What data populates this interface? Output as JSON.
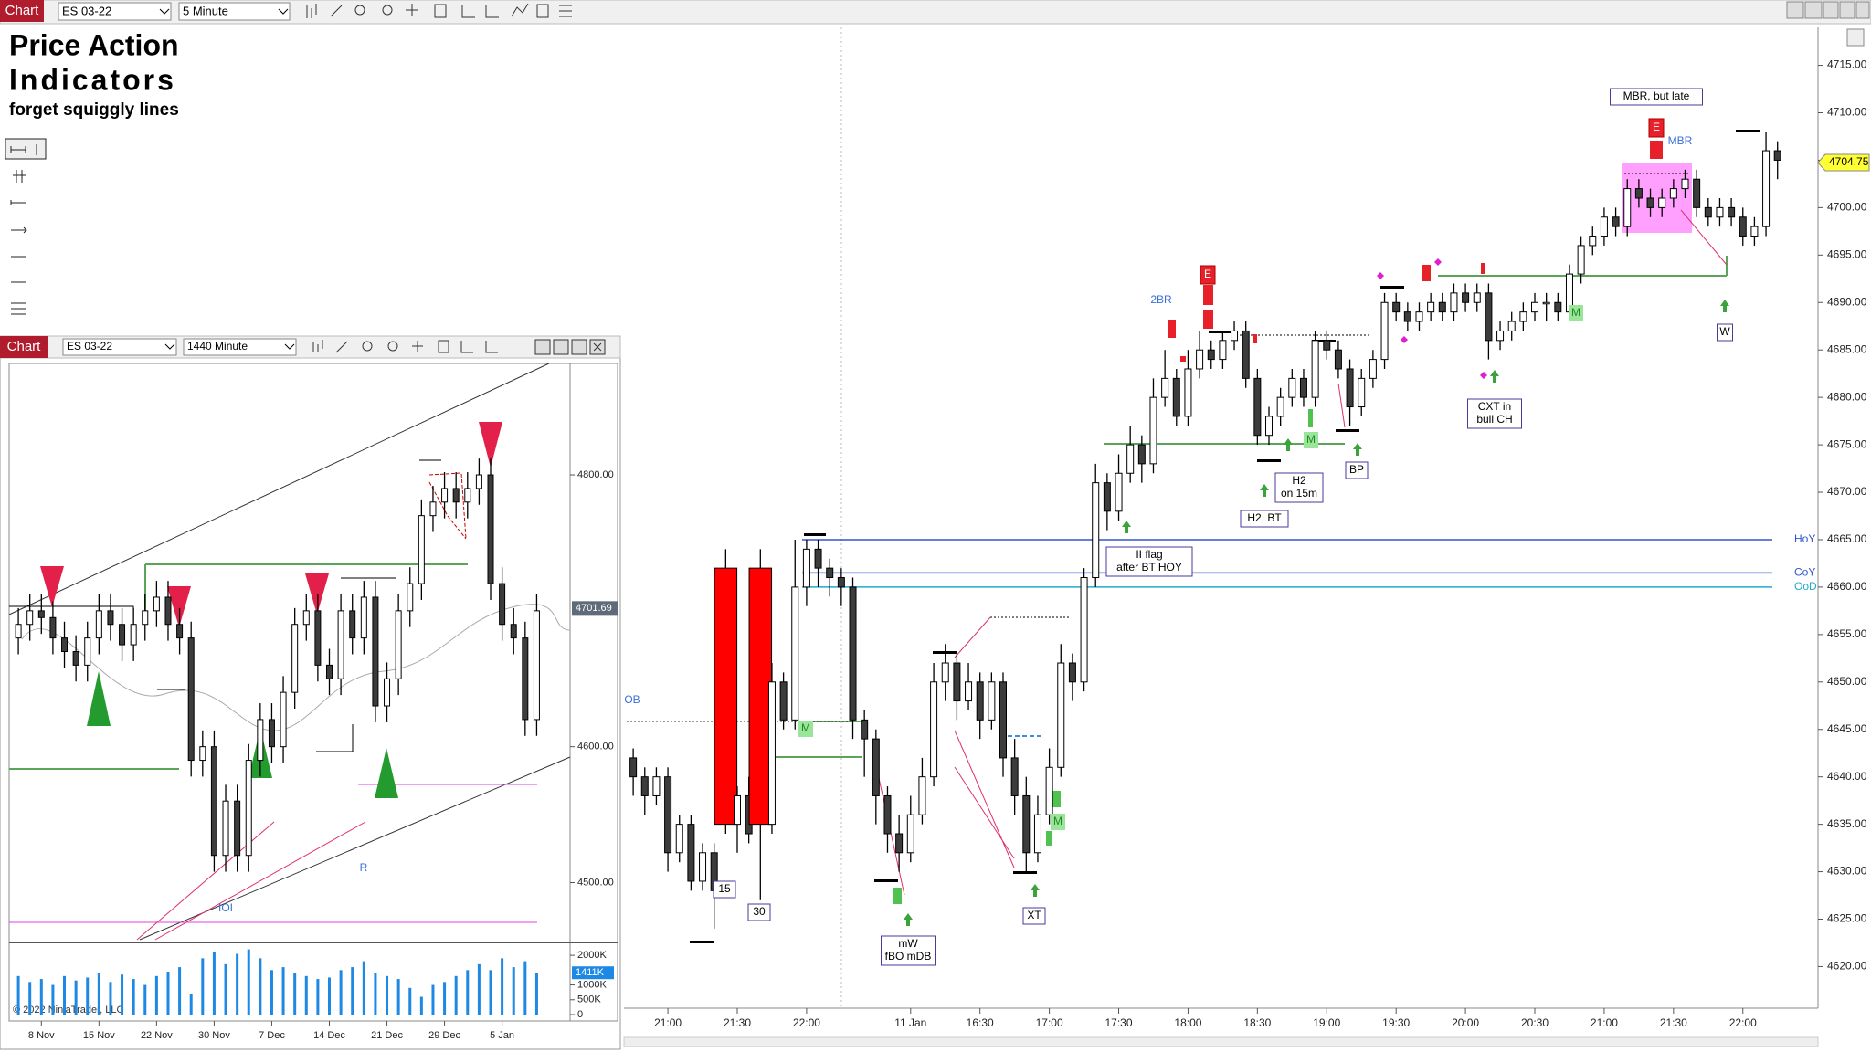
{
  "main_toolbar": {
    "tab": "Chart",
    "instrument": "ES 03-22",
    "interval": "5 Minute"
  },
  "inset_toolbar": {
    "tab": "Chart",
    "instrument": "ES 03-22",
    "interval": "1440 Minute"
  },
  "header": {
    "line1": "Price Action",
    "line2": "Indicators",
    "subtitle": "forget squiggly lines"
  },
  "copyright": "© 2022 NinjaTrader, LLC",
  "chart_data": [
    {
      "type": "candlestick",
      "x": [
        -3,
        -2,
        -1,
        0,
        1,
        2,
        3,
        4,
        5,
        6,
        7,
        8,
        9,
        10,
        11,
        12,
        13,
        14,
        15,
        16,
        17,
        18,
        19,
        20,
        21,
        22,
        23,
        24,
        25,
        26,
        27,
        28,
        29,
        30,
        31,
        32,
        33,
        34,
        35,
        36,
        37,
        38,
        39,
        40,
        41,
        42,
        43,
        44,
        45,
        46,
        47,
        48,
        49,
        50,
        51,
        52,
        53,
        54,
        55,
        56,
        57,
        58,
        59,
        60,
        61,
        62,
        63,
        64,
        65,
        66,
        67,
        68,
        69,
        70,
        71,
        72,
        73,
        74,
        75,
        76,
        77,
        78,
        79,
        80,
        81,
        82,
        83,
        84,
        85,
        86,
        87,
        88,
        89,
        90,
        91,
        92,
        93,
        94,
        95,
        96
      ],
      "open": [
        4642,
        4640,
        4638,
        4640,
        4632,
        4635,
        4629,
        4632,
        4662,
        4635,
        4638,
        4662,
        4635,
        4650,
        4646,
        4660,
        4664,
        4662,
        4661,
        4660,
        4646,
        4644,
        4638,
        4634,
        4632,
        4636,
        4640,
        4650,
        4652,
        4648,
        4650,
        4646,
        4650,
        4642,
        4638,
        4632,
        4636,
        4641,
        4652,
        4650,
        4661,
        4671,
        4668,
        4672,
        4675,
        4673,
        4680,
        4682,
        4678,
        4683,
        4685,
        4684,
        4686,
        4687,
        4682,
        4676,
        4678,
        4680,
        4682,
        4680,
        4686,
        4685,
        4683,
        4679,
        4682,
        4684,
        4690,
        4689,
        4688,
        4689,
        4690,
        4689,
        4691,
        4690,
        4691,
        4686,
        4687,
        4688,
        4689,
        4690,
        4690,
        4689,
        4693,
        4696,
        4697,
        4699,
        4698,
        4702,
        4701,
        4700,
        4701,
        4702,
        4703,
        4700,
        4699,
        4700,
        4699,
        4697,
        4698,
        4706
      ],
      "high": [
        4643,
        4641,
        4641,
        4641,
        4636,
        4636,
        4633,
        4633,
        4664,
        4639,
        4640,
        4664,
        4652,
        4651,
        4665,
        4665,
        4665,
        4663,
        4662,
        4661,
        4647,
        4645,
        4639,
        4636,
        4638,
        4642,
        4652,
        4654,
        4653,
        4652,
        4651,
        4651,
        4651,
        4644,
        4640,
        4638,
        4643,
        4654,
        4653,
        4662,
        4673,
        4672,
        4674,
        4677,
        4676,
        4682,
        4685,
        4683,
        4685,
        4687,
        4686,
        4687,
        4688,
        4688,
        4683,
        4679,
        4681,
        4683,
        4683,
        4687,
        4687,
        4686,
        4684,
        4683,
        4685,
        4691,
        4691,
        4690,
        4690,
        4691,
        4691,
        4692,
        4692,
        4692,
        4692,
        4688,
        4689,
        4690,
        4691,
        4691,
        4691,
        4694,
        4697,
        4698,
        4700,
        4700,
        4703,
        4703,
        4702,
        4702,
        4703,
        4704,
        4704,
        4701,
        4701,
        4701,
        4700,
        4699,
        4708,
        4707
      ],
      "low": [
        4638,
        4636,
        4637,
        4630,
        4631,
        4628,
        4628,
        4624,
        4634,
        4632,
        4633,
        4627,
        4634,
        4645,
        4645,
        4658,
        4660,
        4659,
        4658,
        4644,
        4640,
        4635,
        4632,
        4630,
        4631,
        4635,
        4639,
        4648,
        4646,
        4647,
        4644,
        4645,
        4640,
        4636,
        4630,
        4631,
        4635,
        4640,
        4648,
        4649,
        4660,
        4666,
        4667,
        4671,
        4671,
        4672,
        4679,
        4677,
        4677,
        4682,
        4683,
        4683,
        4685,
        4681,
        4675,
        4675,
        4677,
        4679,
        4679,
        4679,
        4684,
        4682,
        4677,
        4678,
        4681,
        4683,
        4688,
        4687,
        4687,
        4688,
        4688,
        4688,
        4689,
        4689,
        4684,
        4685,
        4686,
        4687,
        4688,
        4688,
        4688,
        4688,
        4692,
        4695,
        4696,
        4697,
        4697,
        4700,
        4699,
        4699,
        4700,
        4701,
        4699,
        4698,
        4698,
        4698,
        4696,
        4696,
        4697,
        4703
      ],
      "close": [
        4640,
        4638,
        4640,
        4632,
        4635,
        4629,
        4632,
        4628,
        4635,
        4638,
        4634,
        4635,
        4650,
        4646,
        4660,
        4664,
        4662,
        4661,
        4660,
        4646,
        4644,
        4638,
        4634,
        4632,
        4636,
        4640,
        4650,
        4652,
        4648,
        4650,
        4646,
        4650,
        4642,
        4638,
        4632,
        4636,
        4641,
        4652,
        4650,
        4661,
        4671,
        4668,
        4672,
        4675,
        4673,
        4680,
        4682,
        4678,
        4683,
        4685,
        4684,
        4686,
        4687,
        4682,
        4676,
        4678,
        4680,
        4682,
        4680,
        4686,
        4685,
        4683,
        4679,
        4682,
        4684,
        4690,
        4689,
        4688,
        4689,
        4690,
        4689,
        4691,
        4690,
        4691,
        4686,
        4687,
        4688,
        4689,
        4690,
        4690,
        4689,
        4693,
        4696,
        4697,
        4699,
        4698,
        4702,
        4701,
        4700,
        4701,
        4702,
        4703,
        4700,
        4699,
        4700,
        4699,
        4697,
        4698,
        4706,
        4705
      ],
      "up_color": "#ffffff",
      "down_color": "#3c3c3c",
      "highlight_x": [
        5,
        8
      ],
      "highlight_color": "#ff0000",
      "xlim": [
        -3.8,
        99.5
      ],
      "xticks": [
        {
          "value": 0,
          "label": "21:00"
        },
        {
          "value": 6,
          "label": "21:30"
        },
        {
          "value": 12,
          "label": "22:00"
        },
        {
          "value": 21,
          "label": "11 Jan"
        },
        {
          "value": 27,
          "label": "16:30"
        },
        {
          "value": 33,
          "label": "17:00"
        },
        {
          "value": 39,
          "label": "17:30"
        },
        {
          "value": 45,
          "label": "18:00"
        },
        {
          "value": 51,
          "label": "18:30"
        },
        {
          "value": 57,
          "label": "19:00"
        },
        {
          "value": 63,
          "label": "19:30"
        },
        {
          "value": 69,
          "label": "20:00"
        },
        {
          "value": 75,
          "label": "20:30"
        },
        {
          "value": 81,
          "label": "21:00"
        },
        {
          "value": 87,
          "label": "21:30"
        },
        {
          "value": 93,
          "label": "22:00"
        }
      ],
      "ylim": [
        4616,
        4719
      ],
      "yticks": [
        {
          "value": 4620,
          "label": "4620.00"
        },
        {
          "value": 4625,
          "label": "4625.00"
        },
        {
          "value": 4630,
          "label": "4630.00"
        },
        {
          "value": 4635,
          "label": "4635.00"
        },
        {
          "value": 4640,
          "label": "4640.00"
        },
        {
          "value": 4645,
          "label": "4645.00"
        },
        {
          "value": 4650,
          "label": "4650.00"
        },
        {
          "value": 4655,
          "label": "4655.00"
        },
        {
          "value": 4660,
          "label": "4660.00"
        },
        {
          "value": 4665,
          "label": "4665.00"
        },
        {
          "value": 4670,
          "label": "4670.00"
        },
        {
          "value": 4675,
          "label": "4675.00"
        },
        {
          "value": 4680,
          "label": "4680.00"
        },
        {
          "value": 4685,
          "label": "4685.00"
        },
        {
          "value": 4690,
          "label": "4690.00"
        },
        {
          "value": 4695,
          "label": "4695.00"
        },
        {
          "value": 4700,
          "label": "4700.00"
        },
        {
          "value": 4705,
          "label": "4705.00"
        },
        {
          "value": 4710,
          "label": "4710.00"
        },
        {
          "value": 4715,
          "label": "4715.00"
        }
      ],
      "levels": [
        {
          "name": "HoY",
          "value": 4665,
          "color": "#3355cc"
        },
        {
          "name": "CoY",
          "value": 4661.5,
          "color": "#3355cc"
        },
        {
          "name": "OoD",
          "value": 4660,
          "color": "#22aacc"
        }
      ],
      "last_price": {
        "value": 4704.75,
        "label": "4704.75"
      },
      "annotations": [
        [
          "MBR, but late"
        ],
        [
          "MBR"
        ],
        [
          "2BR"
        ],
        [
          "CXT in",
          "bull CH"
        ],
        [
          "H2",
          "on 15m"
        ],
        [
          "H2, BT"
        ],
        [
          "BP"
        ],
        [
          "W"
        ],
        [
          "II flag",
          "after BT HOY"
        ],
        [
          "mW",
          "fBO mDB"
        ],
        [
          "XT"
        ],
        [
          "15"
        ],
        [
          "30"
        ],
        [
          "OB"
        ],
        [
          "M"
        ],
        [
          "M"
        ],
        [
          "M"
        ],
        [
          "M"
        ],
        [
          "E"
        ],
        [
          "E"
        ]
      ]
    },
    {
      "type": "candlestick",
      "x": [
        -2,
        -1,
        0,
        1,
        2,
        3,
        4,
        5,
        6,
        7,
        8,
        9,
        10,
        11,
        12,
        13,
        14,
        15,
        16,
        17,
        18,
        19,
        20,
        21,
        22,
        23,
        24,
        25,
        26,
        27,
        28,
        29,
        30,
        31,
        32,
        33,
        34,
        35,
        36,
        37,
        38,
        39,
        40,
        41,
        42,
        43
      ],
      "open": [
        4680,
        4690,
        4700,
        4695,
        4680,
        4670,
        4660,
        4680,
        4700,
        4690,
        4675,
        4690,
        4700,
        4710,
        4690,
        4680,
        4590,
        4600,
        4520,
        4560,
        4520,
        4590,
        4620,
        4600,
        4640,
        4690,
        4700,
        4660,
        4650,
        4700,
        4680,
        4710,
        4630,
        4650,
        4700,
        4720,
        4770,
        4780,
        4790,
        4780,
        4790,
        4800,
        4720,
        4690,
        4680,
        4620
      ],
      "high": [
        4702,
        4712,
        4712,
        4707,
        4692,
        4682,
        4692,
        4712,
        4712,
        4702,
        4702,
        4712,
        4722,
        4722,
        4702,
        4692,
        4612,
        4612,
        4572,
        4572,
        4602,
        4632,
        4632,
        4652,
        4702,
        4712,
        4712,
        4672,
        4712,
        4712,
        4722,
        4722,
        4662,
        4712,
        4732,
        4782,
        4792,
        4802,
        4802,
        4802,
        4812,
        4812,
        4732,
        4702,
        4692,
        4712
      ],
      "low": [
        4668,
        4678,
        4683,
        4668,
        4658,
        4648,
        4648,
        4668,
        4678,
        4663,
        4663,
        4678,
        4688,
        4678,
        4668,
        4578,
        4578,
        4508,
        4508,
        4508,
        4508,
        4578,
        4588,
        4588,
        4628,
        4678,
        4648,
        4638,
        4638,
        4668,
        4668,
        4618,
        4618,
        4638,
        4688,
        4708,
        4758,
        4768,
        4768,
        4768,
        4778,
        4708,
        4678,
        4668,
        4608,
        4608
      ],
      "close": [
        4690,
        4700,
        4695,
        4680,
        4670,
        4660,
        4680,
        4700,
        4690,
        4675,
        4690,
        4700,
        4710,
        4690,
        4680,
        4590,
        4600,
        4520,
        4560,
        4520,
        4590,
        4620,
        4600,
        4640,
        4690,
        4700,
        4660,
        4650,
        4700,
        4680,
        4710,
        4630,
        4650,
        4700,
        4720,
        4770,
        4780,
        4790,
        4780,
        4790,
        4800,
        4720,
        4690,
        4680,
        4620,
        4700
      ],
      "up_color": "#ffffff",
      "down_color": "#3c3c3c",
      "xlim": [
        -2.8,
        45.9
      ],
      "xticks": [
        {
          "value": 0,
          "label": "8 Nov"
        },
        {
          "value": 5,
          "label": "15 Nov"
        },
        {
          "value": 10,
          "label": "22 Nov"
        },
        {
          "value": 15,
          "label": "30 Nov"
        },
        {
          "value": 20,
          "label": "7 Dec"
        },
        {
          "value": 25,
          "label": "14 Dec"
        },
        {
          "value": 30,
          "label": "21 Dec"
        },
        {
          "value": 35,
          "label": "29 Dec"
        },
        {
          "value": 40,
          "label": "5 Jan"
        }
      ],
      "ylim": [
        4458,
        4882
      ],
      "yticks": [
        {
          "value": 4500,
          "label": "4500.00"
        },
        {
          "value": 4600,
          "label": "4600.00"
        },
        {
          "value": 4800,
          "label": "4800.00"
        }
      ],
      "last_price": {
        "value": 4701.69,
        "label": "4701.69"
      },
      "annotations": [
        [
          "R"
        ],
        [
          "IOI"
        ]
      ],
      "volume": {
        "values": [
          1300000,
          1100000,
          1200000,
          1000000,
          1300000,
          1150000,
          1250000,
          1400000,
          1100000,
          1350000,
          1200000,
          1000000,
          1300000,
          1450000,
          1600000,
          700000,
          1900000,
          2100000,
          1700000,
          2050000,
          2200000,
          1900000,
          1500000,
          1600000,
          1400000,
          1300000,
          1200000,
          1250000,
          1500000,
          1600000,
          1800000,
          1400000,
          1300000,
          1200000,
          900000,
          600000,
          1000000,
          1100000,
          1300000,
          1500000,
          1700000,
          1500000,
          1900000,
          1600000,
          1800000,
          1411000
        ],
        "color": "#1e88e5",
        "ylim": [
          0,
          2250000
        ],
        "yticks": [
          0,
          {
            "value": 500000,
            "label": "500K"
          },
          {
            "value": 1000000,
            "label": "1000K"
          },
          {
            "value": 2000000,
            "label": "2000K"
          }
        ],
        "last": {
          "value": 1411000,
          "label": "1411K"
        }
      }
    }
  ]
}
